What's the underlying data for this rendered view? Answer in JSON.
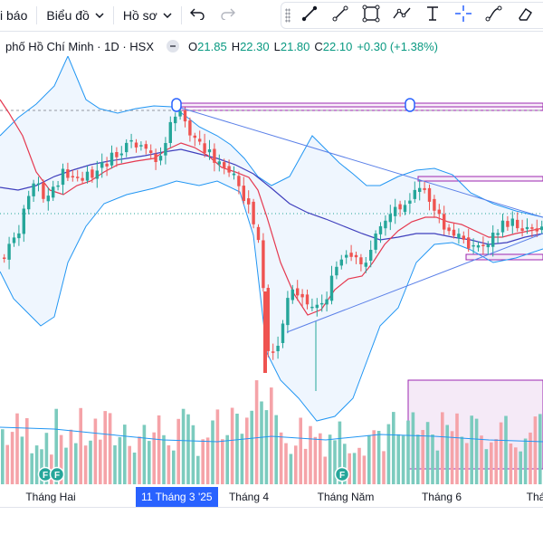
{
  "toolbar": {
    "alerts_label": "i báo",
    "chart_label": "Biểu đồ",
    "profile_label": "Hồ sơ"
  },
  "legend": {
    "symbol": "phố Hồ Chí Minh · 1D · HSX",
    "open_label": "O",
    "open": "21.85",
    "high_label": "H",
    "high": "22.30",
    "low_label": "L",
    "low": "21.80",
    "close_label": "C",
    "close": "22.10",
    "change": "+0.30 (+1.38%)"
  },
  "time_axis": {
    "labels": [
      "Tháng Hai",
      "Tháng 4",
      "Tháng Năm",
      "Tháng 6",
      "Thá"
    ],
    "cursor_label": "11 Tháng 3 '25"
  },
  "events": {
    "f_marker": "F"
  },
  "colors": {
    "up": "#26a69a",
    "down": "#ef5350",
    "up_volume": "#7ccbbe",
    "down_volume": "#f5a3a8",
    "bollinger": "#2196f3",
    "ma_fast": "#e53950",
    "ma_slow": "#3f3fbd",
    "trendline": "#5b80e8",
    "rectangle": "#9c27b0"
  },
  "drawing_tools": [
    "trend-line-icon",
    "ray-icon",
    "rectangle-icon",
    "path-icon",
    "text-cursor-icon",
    "crosshair-icon",
    "curve-icon",
    "eraser-icon"
  ]
}
